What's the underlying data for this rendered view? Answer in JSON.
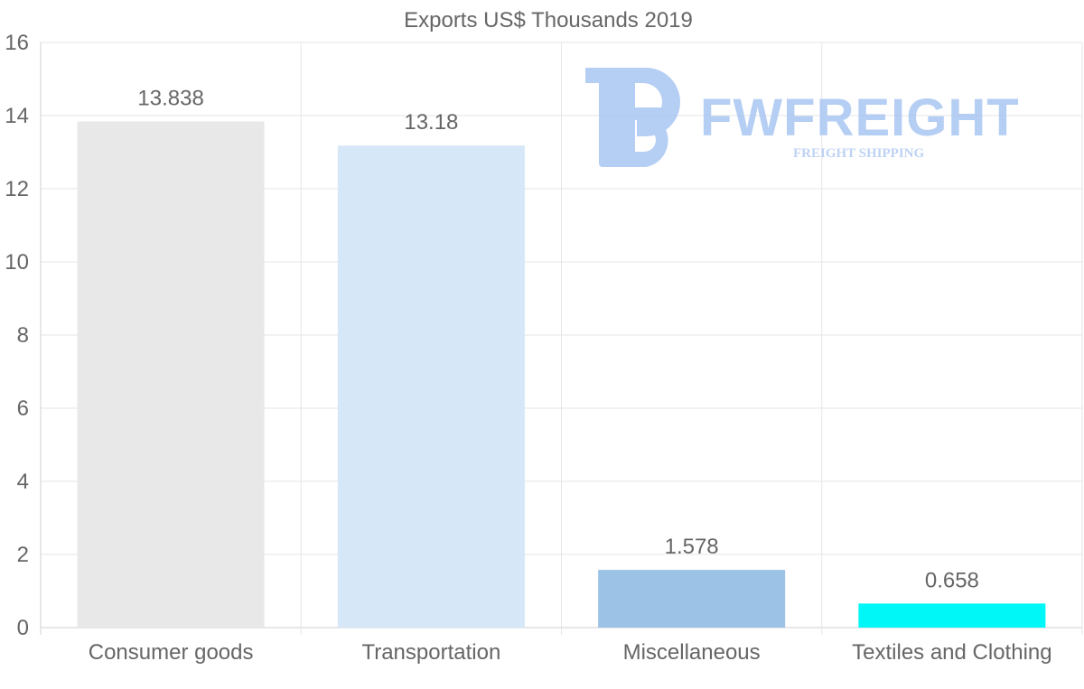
{
  "chart_data": {
    "type": "bar",
    "title": "Exports US$ Thousands 2019",
    "categories": [
      "Consumer goods",
      "Transportation",
      "Miscellaneous",
      "Textiles and Clothing"
    ],
    "values": [
      13.838,
      13.18,
      1.578,
      0.658
    ],
    "data_labels": [
      "13.838",
      "13.18",
      "1.578",
      "0.658"
    ],
    "colors": [
      "#e8e8e8",
      "#d6e7f8",
      "#9cc3e6",
      "#00f7f7"
    ],
    "ylim": [
      0,
      16
    ],
    "yticks": [
      0,
      2,
      4,
      6,
      8,
      10,
      12,
      14,
      16
    ],
    "xlabel": "",
    "ylabel": "",
    "grid": true,
    "legend": "none"
  },
  "watermark": {
    "brand": "FWFREIGHT",
    "tagline": "FREIGHT SHIPPING",
    "color": "#a9c6f2"
  }
}
